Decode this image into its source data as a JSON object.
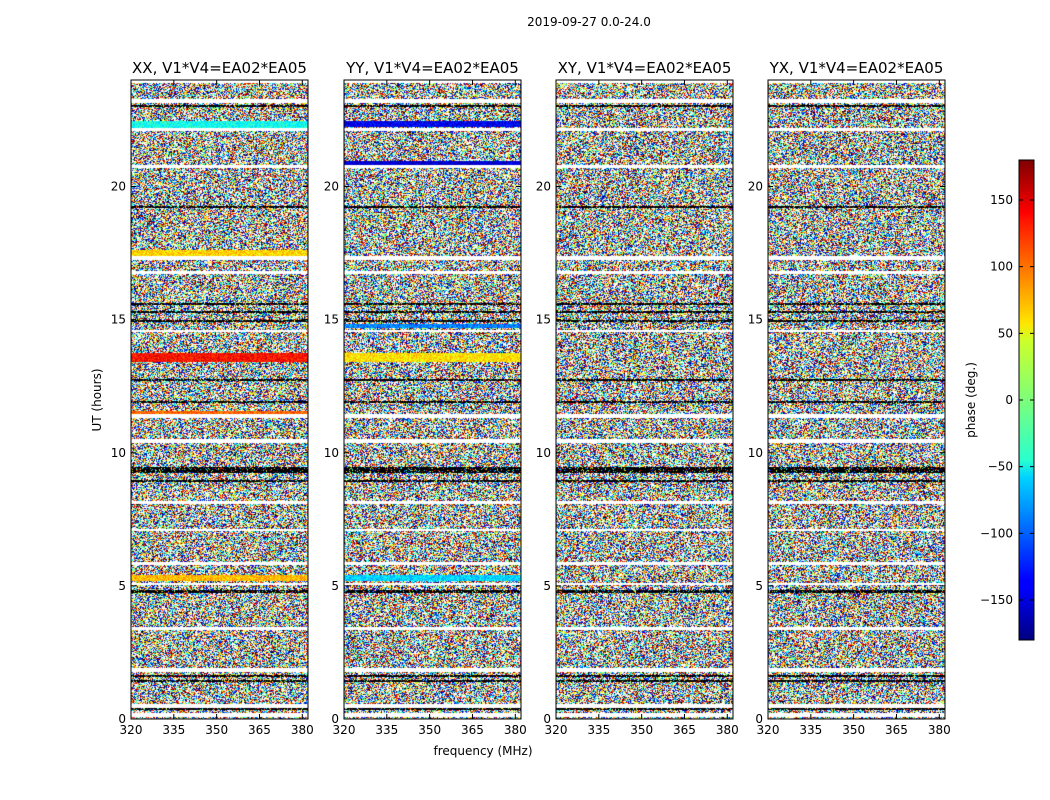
{
  "chart_data": {
    "type": "heatmap",
    "suptitle": "2019-09-27 0.0-24.0",
    "xlabel": "frequency (MHz)",
    "ylabel": "UT (hours)",
    "xlim": [
      320,
      382
    ],
    "ylim": [
      0,
      24
    ],
    "xticks": [
      320,
      335,
      350,
      365,
      380
    ],
    "yticks": [
      0,
      5,
      10,
      15,
      20
    ],
    "panels": [
      {
        "title": "XX, V1*V4=EA02*EA05"
      },
      {
        "title": "YY, V1*V4=EA02*EA05"
      },
      {
        "title": "XY, V1*V4=EA02*EA05"
      },
      {
        "title": "YX, V1*V4=EA02*EA05"
      }
    ],
    "colorbar": {
      "label": "phase (deg.)",
      "range": [
        -180,
        180
      ],
      "ticks": [
        -150,
        -100,
        -50,
        0,
        50,
        100,
        150
      ],
      "tick_labels": [
        "−150",
        "−100",
        "−50",
        "0",
        "50",
        "100",
        "150"
      ],
      "colormap": "jet"
    },
    "blank_bands_hours": [
      [
        0.08,
        0.22
      ],
      [
        0.42,
        0.58
      ],
      [
        1.75,
        1.9
      ],
      [
        3.35,
        3.45
      ],
      [
        5.02,
        5.12
      ],
      [
        5.78,
        5.9
      ],
      [
        7.05,
        7.15
      ],
      [
        8.08,
        8.18
      ],
      [
        10.36,
        10.5
      ],
      [
        11.32,
        11.45
      ],
      [
        14.52,
        14.62
      ],
      [
        16.72,
        16.82
      ],
      [
        17.25,
        17.4
      ],
      [
        20.7,
        20.82
      ],
      [
        22.08,
        22.2
      ],
      [
        23.15,
        23.3
      ],
      [
        23.9,
        24.0
      ]
    ],
    "dark_bands_hours": [
      [
        0.35,
        0.42
      ],
      [
        1.4,
        1.48
      ],
      [
        1.58,
        1.64
      ],
      [
        4.75,
        4.85
      ],
      [
        8.9,
        8.98
      ],
      [
        9.25,
        9.45
      ],
      [
        11.88,
        11.95
      ],
      [
        12.7,
        12.78
      ],
      [
        14.9,
        14.98
      ],
      [
        15.25,
        15.33
      ],
      [
        15.55,
        15.62
      ],
      [
        19.18,
        19.25
      ],
      [
        23.0,
        23.05
      ]
    ],
    "tinted_bands": [
      {
        "panel": 0,
        "hours": [
          13.4,
          13.75
        ],
        "phase": 130
      },
      {
        "panel": 0,
        "hours": [
          11.35,
          11.55
        ],
        "phase": 100
      },
      {
        "panel": 0,
        "hours": [
          5.2,
          5.4
        ],
        "phase": 70
      },
      {
        "panel": 0,
        "hours": [
          22.2,
          22.45
        ],
        "phase": -40
      },
      {
        "panel": 0,
        "hours": [
          17.4,
          17.6
        ],
        "phase": 60
      },
      {
        "panel": 1,
        "hours": [
          13.4,
          13.75
        ],
        "phase": 55
      },
      {
        "panel": 1,
        "hours": [
          22.25,
          22.45
        ],
        "phase": -140
      },
      {
        "panel": 1,
        "hours": [
          20.8,
          20.95
        ],
        "phase": -150
      },
      {
        "panel": 1,
        "hours": [
          14.7,
          14.85
        ],
        "phase": -90
      },
      {
        "panel": 1,
        "hours": [
          5.2,
          5.4
        ],
        "phase": -60
      }
    ]
  }
}
